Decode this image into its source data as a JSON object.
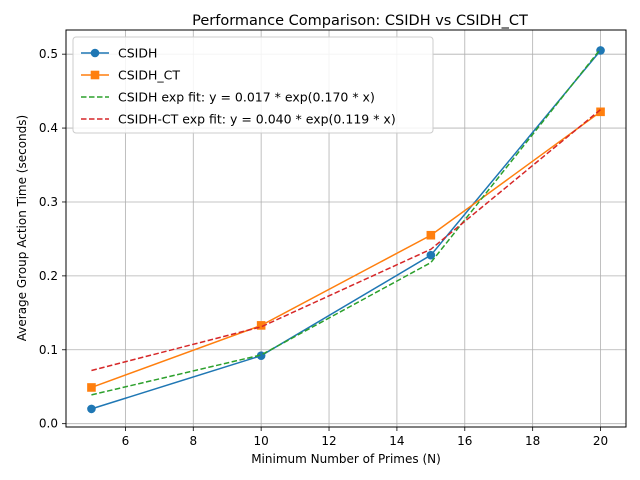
{
  "chart_data": {
    "type": "line",
    "title": "Performance Comparison: CSIDH vs CSIDH_CT",
    "xlabel": "Minimum Number of Primes (N)",
    "ylabel": "Average Group Action Time (seconds)",
    "xlim": [
      4.25,
      20.75
    ],
    "ylim": [
      -0.0045,
      0.5327
    ],
    "xticks": [
      6,
      8,
      10,
      12,
      14,
      16,
      18,
      20
    ],
    "yticks": [
      0.0,
      0.1,
      0.2,
      0.3,
      0.4,
      0.5
    ],
    "xtick_labels": [
      "6",
      "8",
      "10",
      "12",
      "14",
      "16",
      "18",
      "20"
    ],
    "ytick_labels": [
      "0.0",
      "0.1",
      "0.2",
      "0.3",
      "0.4",
      "0.5"
    ],
    "grid": true,
    "legend_position": "top-left",
    "series": [
      {
        "name": "CSIDH",
        "style": "solid",
        "marker": "circle",
        "color": "#1f77b4",
        "x": [
          5,
          10,
          15,
          20
        ],
        "y": [
          0.02,
          0.092,
          0.228,
          0.505
        ]
      },
      {
        "name": "CSIDH_CT",
        "style": "solid",
        "marker": "square",
        "color": "#ff7f0e",
        "x": [
          5,
          10,
          15,
          20
        ],
        "y": [
          0.049,
          0.133,
          0.255,
          0.422
        ]
      },
      {
        "name": "CSIDH exp fit: y = 0.017 * exp(0.170 * x)",
        "style": "dashed",
        "marker": "none",
        "color": "#2ca02c",
        "x": [
          5,
          10,
          15,
          20
        ],
        "y": [
          0.039,
          0.093,
          0.218,
          0.507
        ]
      },
      {
        "name": "CSIDH-CT exp fit: y = 0.040 * exp(0.119 * x)",
        "style": "dashed",
        "marker": "none",
        "color": "#d62728",
        "x": [
          5,
          10,
          15,
          20
        ],
        "y": [
          0.072,
          0.131,
          0.236,
          0.425
        ]
      }
    ]
  }
}
